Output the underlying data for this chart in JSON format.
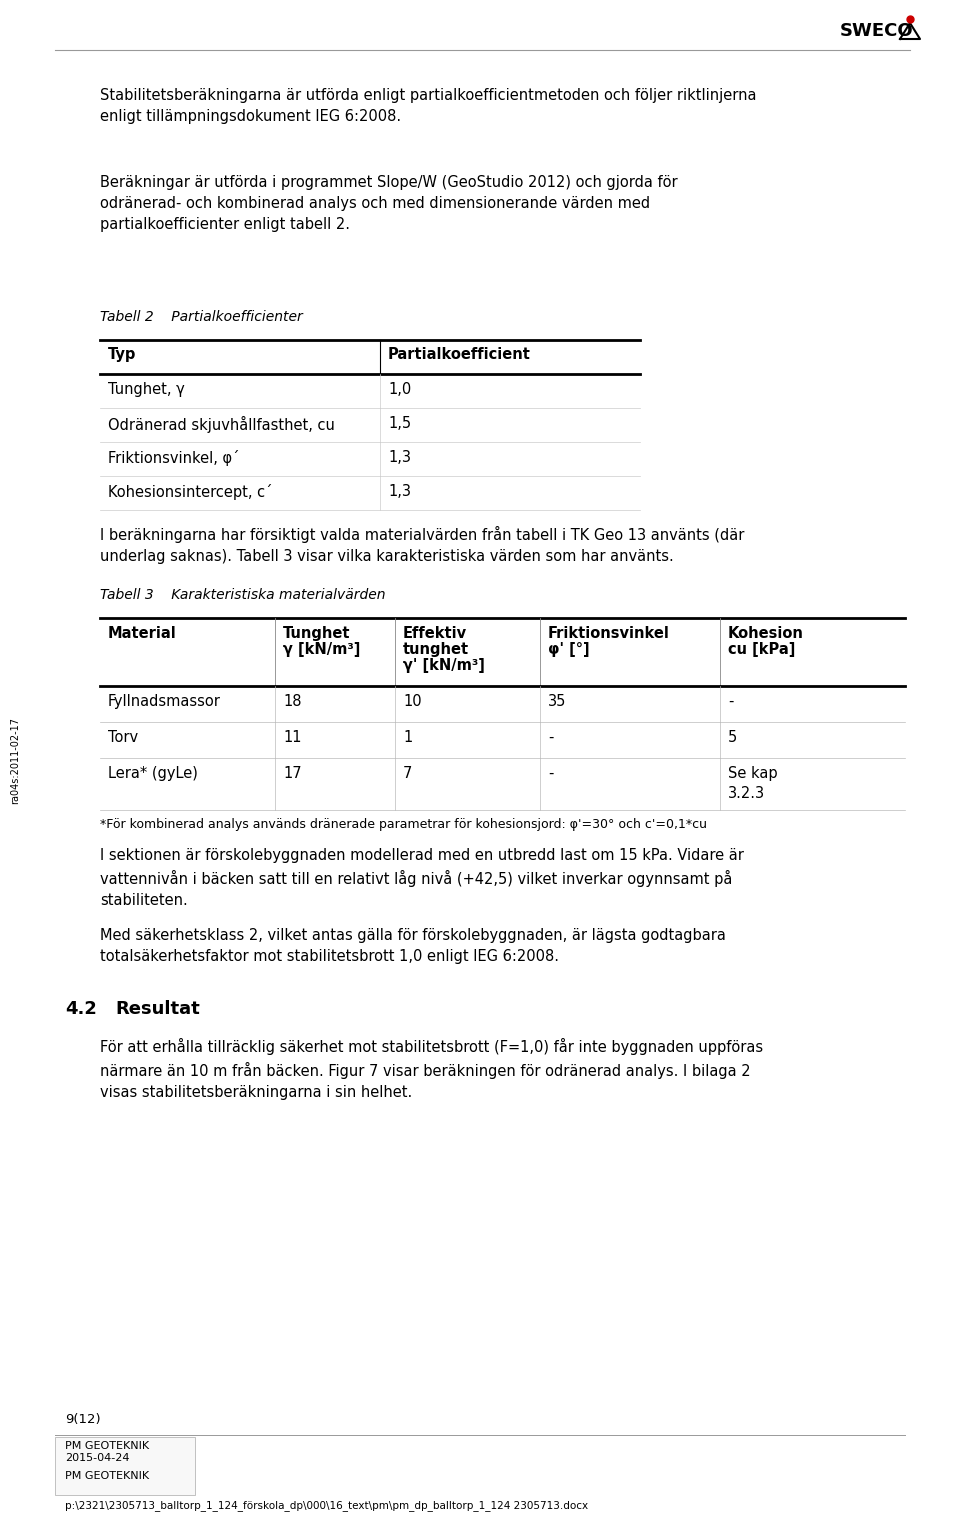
{
  "bg_color": "#ffffff",
  "text_color": "#000000",
  "para1": "Stabilitetsberäkningarna är utförda enligt partialkoefficientmetoden och följer riktlinjerna\nenligt tillämpningsdokument IEG 6:2008.",
  "para2": "Beräkningar är utförda i programmet Slope/W (GeoStudio 2012) och gjorda för\nodränerad- och kombinerad analys och med dimensionerande värden med\npartialkoefficienter enligt tabell 2.",
  "table1_caption": "Tabell 2    Partialkoefficienter",
  "table1_headers": [
    "Typ",
    "Partialkoefficient"
  ],
  "table1_rows": [
    [
      "Tunghet, γ",
      "1,0"
    ],
    [
      "Odränerad skjuvhållfasthet, cu",
      "1,5"
    ],
    [
      "Friktionsvinkel, φ´",
      "1,3"
    ],
    [
      "Kohesionsintercept, c´",
      "1,3"
    ]
  ],
  "table1_note": "I beräkningarna har försiktigt valda materialvärden från tabell i TK Geo 13 använts (där\nunderlag saknas). Tabell 3 visar vilka karakteristiska värden som har använts.",
  "table2_caption": "Tabell 3    Karakteristiska materialvärden",
  "table2_h1": [
    "Material",
    "Tunghet",
    "Effektiv",
    "Friktionsvinkel",
    "Kohesion"
  ],
  "table2_h2": [
    "",
    "γ [kN/m³]",
    "tunghet",
    "φ' [°]",
    "cu [kPa]"
  ],
  "table2_h3": [
    "",
    "",
    "γ' [kN/m³]",
    "",
    ""
  ],
  "table2_rows": [
    [
      "Fyllnadsmassor",
      "18",
      "10",
      "35",
      "-"
    ],
    [
      "Torv",
      "11",
      "1",
      "-",
      "5"
    ],
    [
      "Lera* (gyLe)",
      "17",
      "7",
      "-",
      "Se kap\n3.2.3"
    ]
  ],
  "table2_footnote": "*För kombinerad analys används dränerade parametrar för kohesionsjord: φ'=30° och c'=0,1*cu",
  "para3": "I sektionen är förskolebyggnaden modellerad med en utbredd last om 15 kPa. Vidare är\nvattennivån i bäcken satt till en relativt låg nivå (+42,5) vilket inverkar ogynnsamt på\nstabiliteten.",
  "para4": "Med säkerhetsklass 2, vilket antas gälla för förskolebyggnaden, är lägsta godtagbara\ntotalsäkerhetsfaktor mot stabilitetsbrott 1,0 enligt IEG 6:2008.",
  "section42_num": "4.2",
  "section42_title": "Resultat",
  "para5": "För att erhålla tillräcklig säkerhet mot stabilitetsbrott (F=1,0) får inte byggnaden uppföras\nnärmare än 10 m från bäcken. Figur 7 visar beräkningen för odränerad analys. I bilaga 2\nvisas stabilitetsberäkningarna i sin helhet.",
  "footer_page": "9(12)",
  "footer_company1": "PM GEOTEKNIK",
  "footer_date": "2015-04-24",
  "footer_company2": "PM GEOTEKNIK",
  "footer_path": "p:\\2321\\2305713_balltorp_1_124_förskola_dp\\000\\16_text\\pm\\pm_dp_balltorp_1_124 2305713.docx",
  "side_text": "ra04s:2011-02-17",
  "logo_text": "SWECO"
}
